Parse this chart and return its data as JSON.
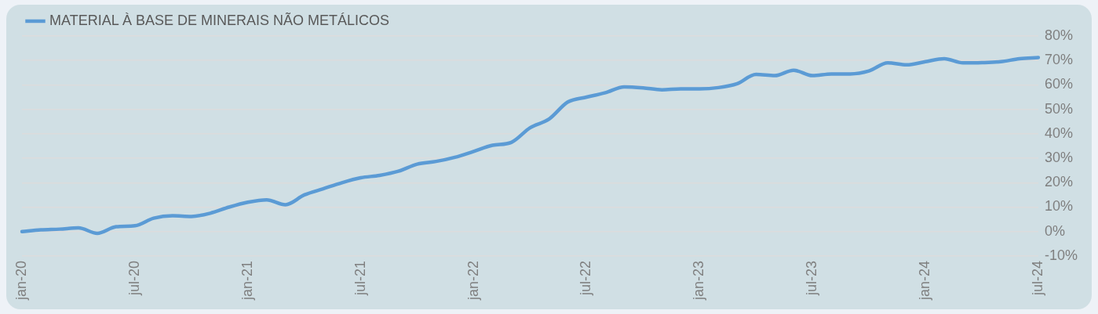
{
  "chart_data": {
    "type": "line",
    "categories": [
      "jan-20",
      null,
      null,
      null,
      null,
      null,
      "jul-20",
      null,
      null,
      null,
      null,
      null,
      "jan-21",
      null,
      null,
      null,
      null,
      null,
      "jul-21",
      null,
      null,
      null,
      null,
      null,
      "jan-22",
      null,
      null,
      null,
      null,
      null,
      "jul-22",
      null,
      null,
      null,
      null,
      null,
      "jan-23",
      null,
      null,
      null,
      null,
      null,
      "jul-23",
      null,
      null,
      null,
      null,
      null,
      "jan-24",
      null,
      null,
      null,
      null,
      null,
      "jul-24"
    ],
    "series": [
      {
        "name": "MATERIAL À BASE DE MINERAIS NÃO METÁLICOS",
        "color": "#5b9bd5",
        "values": [
          0,
          0.7,
          1,
          1.5,
          -0.7,
          2,
          2.4,
          5.5,
          6.5,
          6.2,
          7.5,
          10,
          12,
          13,
          11,
          15,
          17.5,
          20,
          22,
          23,
          24.7,
          27.6,
          28.7,
          30.4,
          32.8,
          35.3,
          36.5,
          42.5,
          46,
          53,
          55,
          56.8,
          59.2,
          58.8,
          58,
          58.4,
          58.4,
          58.9,
          60.5,
          64.3,
          63.8,
          66,
          63.8,
          64.5,
          64.5,
          65.7,
          69,
          68.2,
          69.5,
          70.7,
          69,
          69.1,
          69.5,
          70.7,
          71.2
        ]
      }
    ],
    "ylim": [
      -10,
      80
    ],
    "yticks": [
      {
        "value": -10,
        "label": "-10%"
      },
      {
        "value": 0,
        "label": "0%"
      },
      {
        "value": 10,
        "label": "10%"
      },
      {
        "value": 20,
        "label": "20%"
      },
      {
        "value": 30,
        "label": "30%"
      },
      {
        "value": 40,
        "label": "40%"
      },
      {
        "value": 50,
        "label": "50%"
      },
      {
        "value": 60,
        "label": "60%"
      },
      {
        "value": 70,
        "label": "70%"
      },
      {
        "value": 80,
        "label": "80%"
      }
    ],
    "grid": "y",
    "legend": "top left",
    "marker": "none",
    "line_style": "solid"
  }
}
